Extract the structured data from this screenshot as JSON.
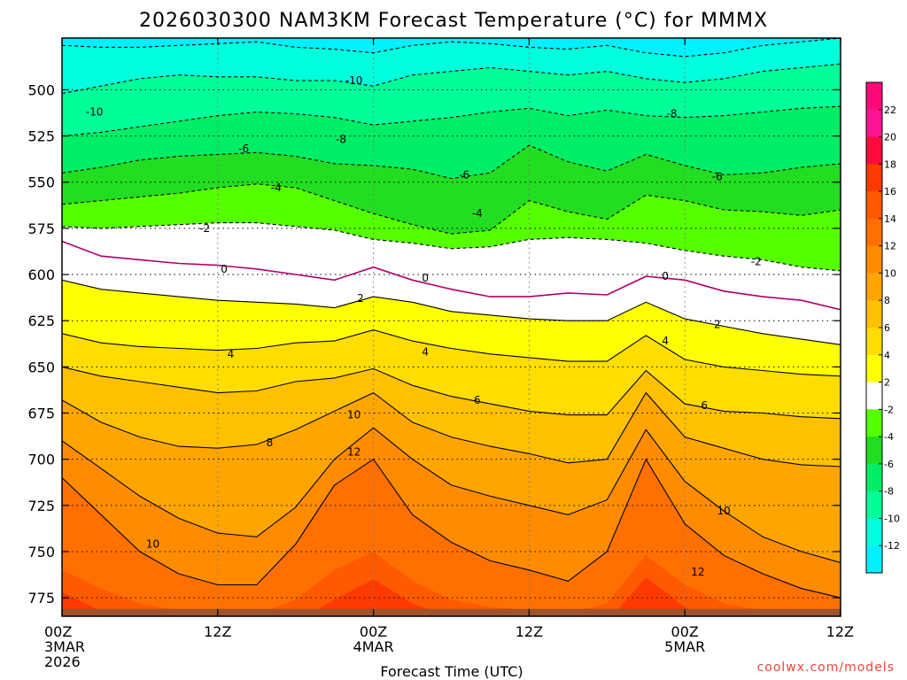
{
  "chart_data": {
    "type": "heatmap",
    "title": "2026030300 NAM3KM Forecast Temperature (°C) for MMMX",
    "xlabel": "Forecast Time (UTC)",
    "ylabel": "",
    "x_range_hours": [
      0,
      60
    ],
    "y_range_hpa": [
      472,
      785
    ],
    "x_ticks": [
      {
        "hour": 0,
        "label": "00Z",
        "date": "3MAR",
        "year": "2026"
      },
      {
        "hour": 12,
        "label": "12Z",
        "date": "",
        "year": ""
      },
      {
        "hour": 24,
        "label": "00Z",
        "date": "4MAR",
        "year": ""
      },
      {
        "hour": 36,
        "label": "12Z",
        "date": "",
        "year": ""
      },
      {
        "hour": 48,
        "label": "00Z",
        "date": "5MAR",
        "year": ""
      },
      {
        "hour": 60,
        "label": "12Z",
        "date": "",
        "year": ""
      }
    ],
    "y_ticks": [
      {
        "p": 500,
        "label": "500"
      },
      {
        "p": 525,
        "label": "525"
      },
      {
        "p": 550,
        "label": "550"
      },
      {
        "p": 575,
        "label": "575"
      },
      {
        "p": 600,
        "label": "600"
      },
      {
        "p": 625,
        "label": "625"
      },
      {
        "p": 650,
        "label": "650"
      },
      {
        "p": 675,
        "label": "675"
      },
      {
        "p": 700,
        "label": "700"
      },
      {
        "p": 725,
        "label": "725"
      },
      {
        "p": 750,
        "label": "750"
      },
      {
        "p": 775,
        "label": "775"
      }
    ],
    "grid": true,
    "surface_pressure_hpa": 781,
    "time_hours": [
      0,
      3,
      6,
      9,
      12,
      15,
      18,
      21,
      24,
      27,
      30,
      33,
      36,
      39,
      42,
      45,
      48,
      51,
      54,
      57,
      60
    ],
    "isotherm_pressures_hpa": [
      {
        "temp": -12,
        "values": [
          476,
          477,
          477,
          476,
          475,
          474,
          477,
          478,
          480,
          476,
          474,
          475,
          477,
          478,
          476,
          480,
          482,
          480,
          476,
          474,
          472
        ]
      },
      {
        "temp": -10,
        "values": [
          502,
          498,
          494,
          492,
          493,
          493,
          495,
          495,
          498,
          492,
          490,
          488,
          490,
          492,
          490,
          494,
          496,
          494,
          490,
          488,
          486
        ]
      },
      {
        "temp": -8,
        "values": [
          525,
          523,
          520,
          517,
          514,
          512,
          513,
          515,
          519,
          517,
          515,
          512,
          510,
          514,
          511,
          514,
          515,
          514,
          512,
          510,
          509
        ]
      },
      {
        "temp": -6,
        "values": [
          545,
          542,
          538,
          536,
          535,
          534,
          536,
          540,
          541,
          543,
          548,
          545,
          530,
          539,
          544,
          535,
          541,
          546,
          545,
          542,
          540
        ]
      },
      {
        "temp": -4,
        "values": [
          562,
          560,
          558,
          556,
          553,
          551,
          553,
          560,
          567,
          573,
          578,
          576,
          560,
          566,
          570,
          557,
          560,
          565,
          566,
          568,
          565
        ]
      },
      {
        "temp": -2,
        "values": [
          574,
          575,
          574,
          573,
          572,
          572,
          574,
          576,
          581,
          583,
          586,
          585,
          581,
          580,
          581,
          583,
          587,
          590,
          592,
          596,
          598
        ]
      },
      {
        "temp": 0,
        "values": [
          582,
          590,
          592,
          594,
          595,
          597,
          600,
          603,
          596,
          603,
          608,
          612,
          612,
          610,
          611,
          601,
          603,
          609,
          612,
          614,
          619
        ]
      },
      {
        "temp": 2,
        "values": [
          603,
          608,
          610,
          612,
          614,
          615,
          616,
          618,
          612,
          615,
          620,
          622,
          624,
          625,
          625,
          615,
          624,
          628,
          632,
          635,
          638
        ]
      },
      {
        "temp": 4,
        "values": [
          632,
          637,
          639,
          640,
          641,
          640,
          637,
          636,
          630,
          636,
          640,
          643,
          645,
          647,
          647,
          633,
          646,
          650,
          652,
          654,
          655
        ]
      },
      {
        "temp": 6,
        "values": [
          650,
          655,
          658,
          661,
          664,
          663,
          658,
          656,
          651,
          660,
          666,
          670,
          674,
          676,
          676,
          652,
          670,
          674,
          675,
          677,
          678
        ]
      },
      {
        "temp": 8,
        "values": [
          668,
          680,
          688,
          693,
          694,
          692,
          684,
          674,
          664,
          680,
          688,
          693,
          697,
          702,
          700,
          664,
          688,
          694,
          700,
          703,
          704
        ]
      },
      {
        "temp": 10,
        "values": [
          690,
          705,
          720,
          732,
          740,
          742,
          726,
          700,
          683,
          700,
          714,
          720,
          725,
          730,
          722,
          684,
          712,
          728,
          742,
          750,
          756
        ]
      },
      {
        "temp": 12,
        "values": [
          710,
          730,
          750,
          762,
          768,
          768,
          746,
          714,
          700,
          730,
          745,
          755,
          760,
          766,
          750,
          700,
          735,
          752,
          762,
          770,
          775
        ]
      }
    ],
    "colorbar": {
      "levels": [
        -12,
        -10,
        -8,
        -6,
        -4,
        -2,
        2,
        4,
        6,
        8,
        10,
        12,
        14,
        16,
        18,
        20,
        22
      ],
      "labels": [
        "22",
        "20",
        "18",
        "16",
        "14",
        "12",
        "10",
        "8",
        "6",
        "4",
        "2",
        "-2",
        "-4",
        "-6",
        "-8",
        "-10",
        "-12"
      ],
      "colors": [
        "#00f0ff",
        "#00ffdd",
        "#00ff99",
        "#00ee66",
        "#22dd22",
        "#55ff00",
        "#ffffff",
        "#ffff00",
        "#ffdd00",
        "#ffc000",
        "#ffa500",
        "#ff8c00",
        "#ff7000",
        "#ff5a00",
        "#ff3a00",
        "#ff0a3c",
        "#ff1493",
        "#ff0a78"
      ]
    },
    "contour_labels": [
      {
        "text": "-10",
        "hour": 2.5,
        "p": 512
      },
      {
        "text": "-10",
        "hour": 22.5,
        "p": 495
      },
      {
        "text": "-8",
        "hour": 21.5,
        "p": 527
      },
      {
        "text": "-8",
        "hour": 47,
        "p": 513
      },
      {
        "text": "-6",
        "hour": 14,
        "p": 532
      },
      {
        "text": "-6",
        "hour": 31,
        "p": 546
      },
      {
        "text": "-6",
        "hour": 50.5,
        "p": 547
      },
      {
        "text": "-4",
        "hour": 16.5,
        "p": 553
      },
      {
        "text": "-4",
        "hour": 32,
        "p": 567
      },
      {
        "text": "-2",
        "hour": 11,
        "p": 575
      },
      {
        "text": "-2",
        "hour": 53.5,
        "p": 593
      },
      {
        "text": "0",
        "hour": 12.5,
        "p": 597
      },
      {
        "text": "0",
        "hour": 28,
        "p": 602
      },
      {
        "text": "0",
        "hour": 46.5,
        "p": 601
      },
      {
        "text": "2",
        "hour": 23,
        "p": 613
      },
      {
        "text": "2",
        "hour": 50.5,
        "p": 627
      },
      {
        "text": "4",
        "hour": 13,
        "p": 643
      },
      {
        "text": "4",
        "hour": 28,
        "p": 642
      },
      {
        "text": "4",
        "hour": 46.5,
        "p": 636
      },
      {
        "text": "6",
        "hour": 32,
        "p": 668
      },
      {
        "text": "6",
        "hour": 49.5,
        "p": 671
      },
      {
        "text": "8",
        "hour": 16,
        "p": 691
      },
      {
        "text": "10",
        "hour": 7,
        "p": 746
      },
      {
        "text": "10",
        "hour": 22.5,
        "p": 676
      },
      {
        "text": "10",
        "hour": 51,
        "p": 728
      },
      {
        "text": "12",
        "hour": 22.5,
        "p": 696
      },
      {
        "text": "12",
        "hour": 49,
        "p": 761
      }
    ]
  },
  "credit": "coolwx.com/models"
}
